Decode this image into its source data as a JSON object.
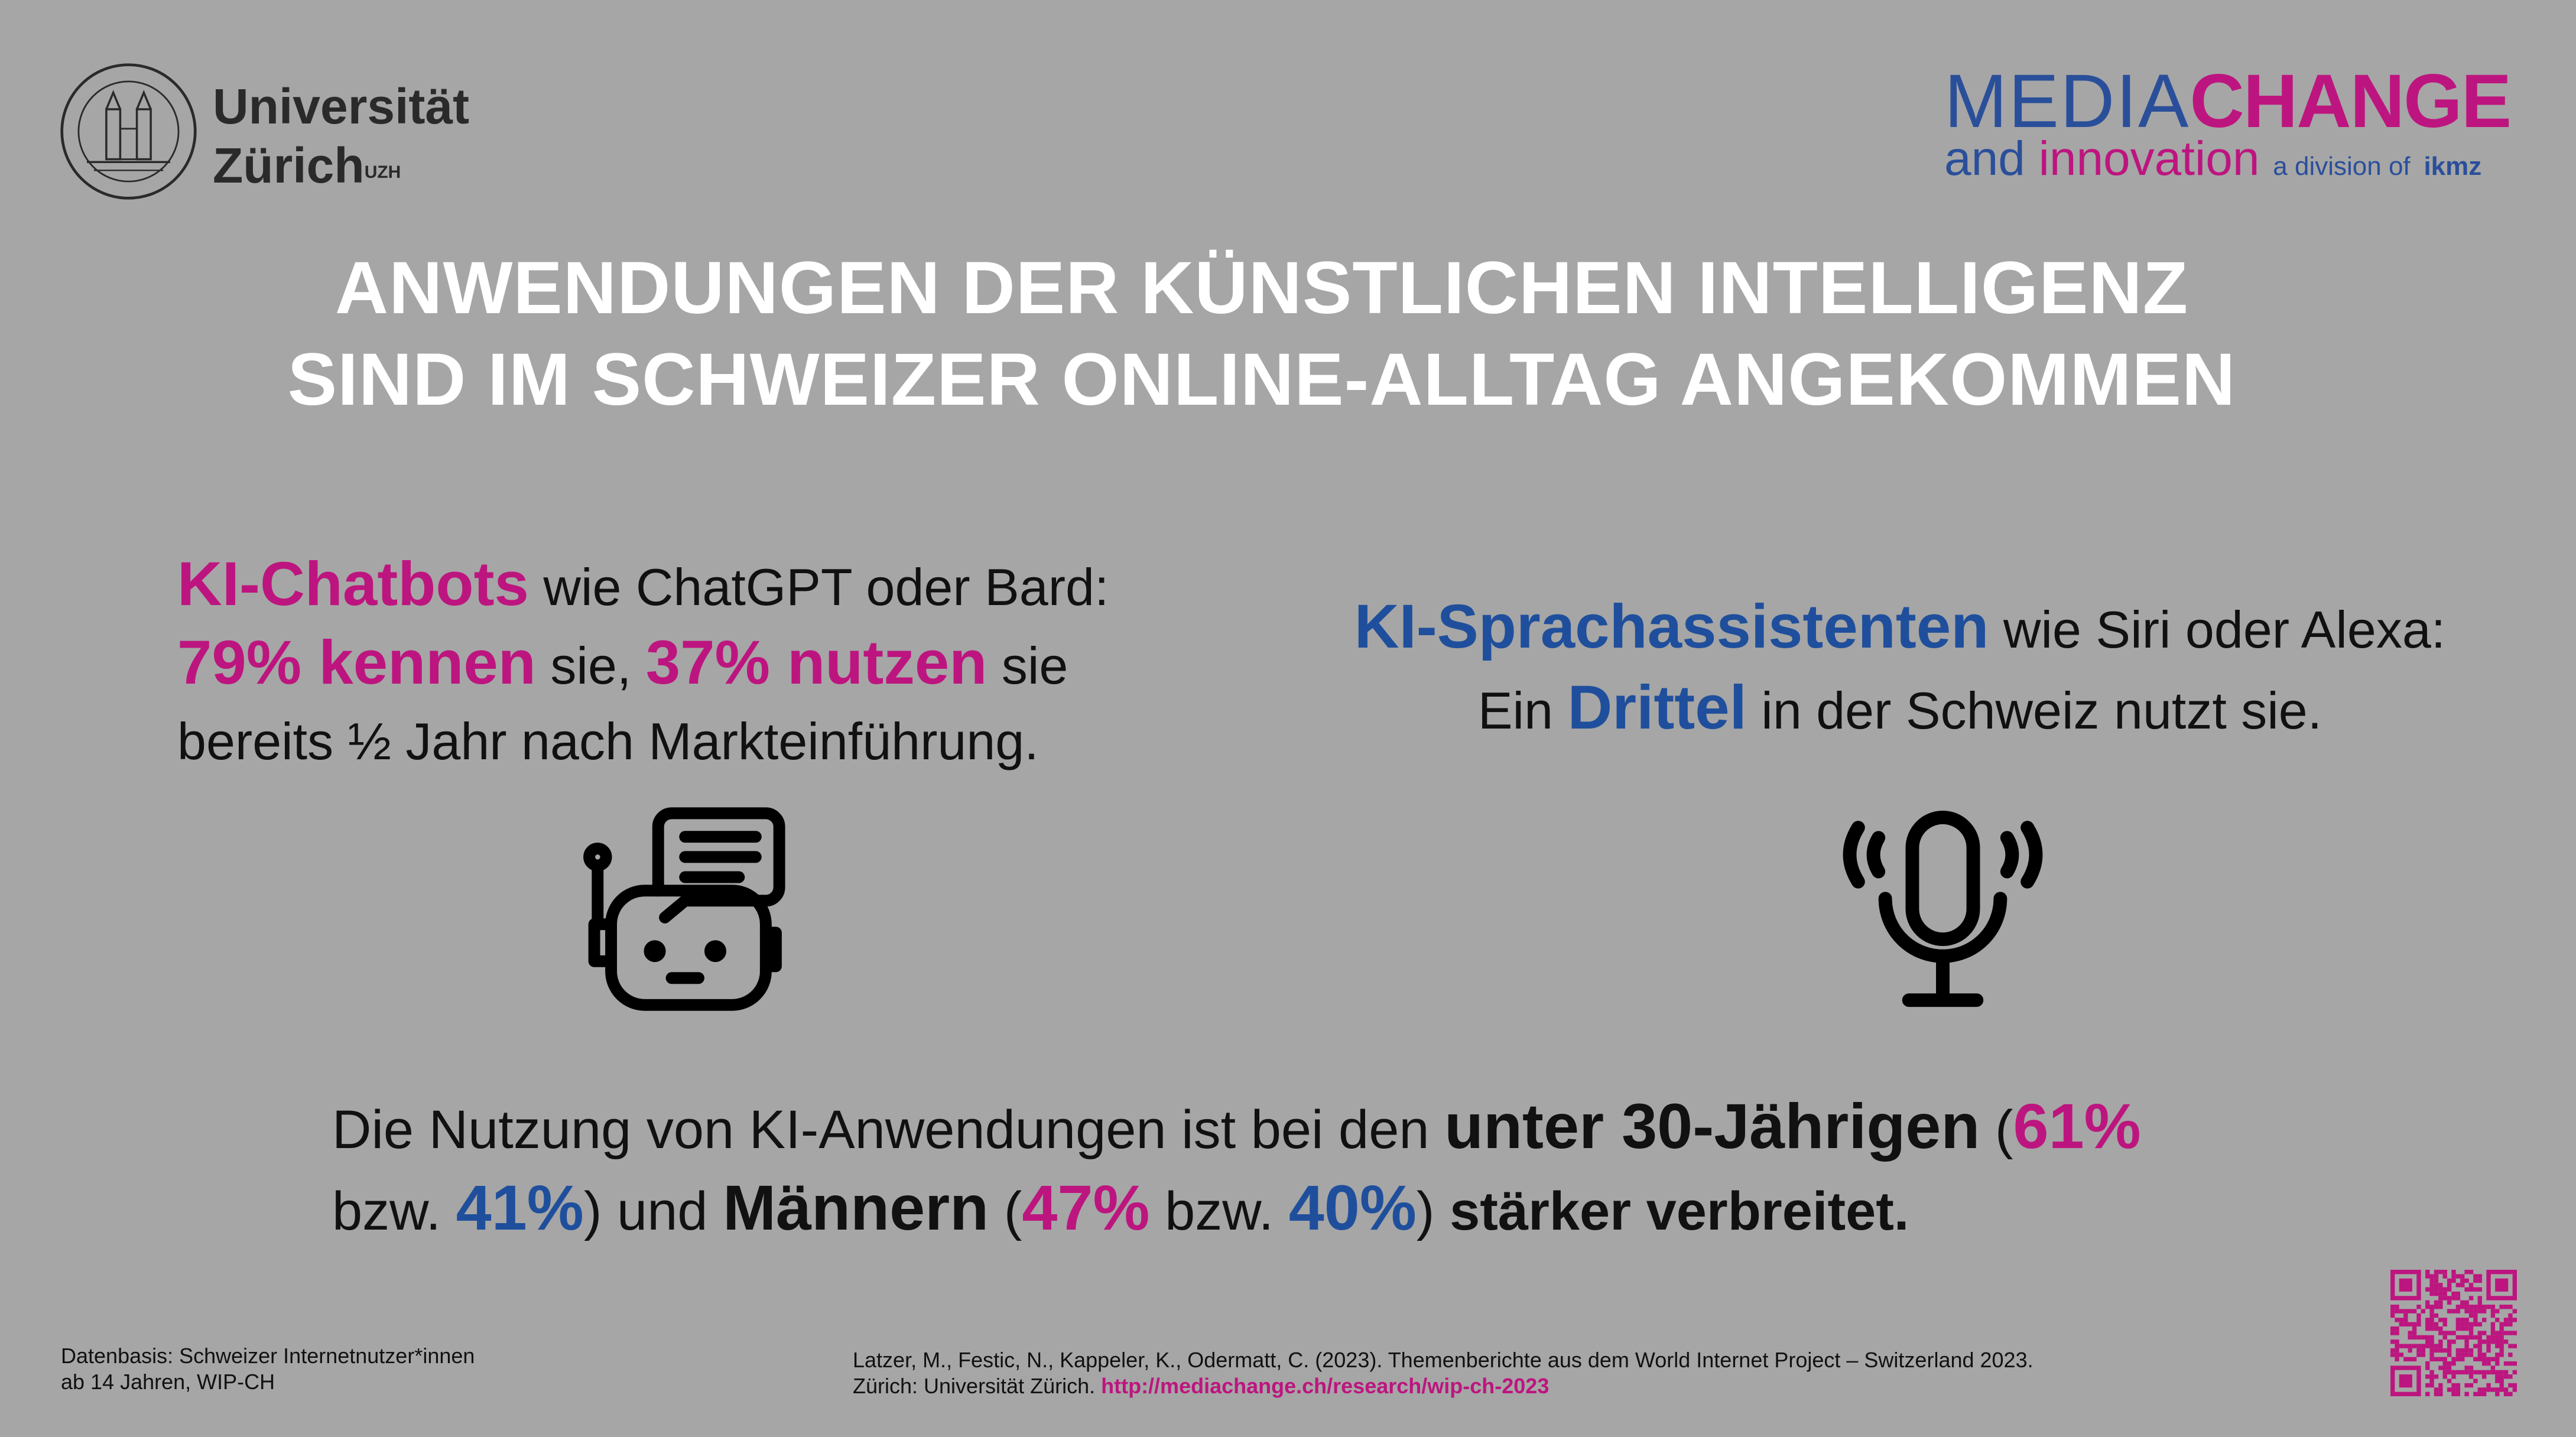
{
  "header": {
    "university_line1": "Universität",
    "university_line2": "Zürich",
    "university_abbr": "UZH",
    "brand_media": "MEDIA",
    "brand_change": "CHANGE",
    "brand_and": "and",
    "brand_innovation": "innovation",
    "brand_division": "a division of",
    "brand_ikmz": "ikmz"
  },
  "title": {
    "line1": "ANWENDUNGEN DER KÜNSTLICHEN INTELLIGENZ",
    "line2": "SIND IM SCHWEIZER ONLINE-ALLTAG ANGEKOMMEN"
  },
  "chatbots": {
    "heading": "KI-Chatbots",
    "text1": " wie ChatGPT oder Bard:",
    "know": "79% kennen",
    "text2": " sie, ",
    "use": "37% nutzen",
    "text3": " sie",
    "text4": "bereits ½ Jahr nach Markteinführung."
  },
  "assistants": {
    "heading": "KI-Sprachassistenten",
    "text1": " wie Siri oder Alexa:",
    "text2": "Ein ",
    "third": "Drittel",
    "text3": " in der Schweiz nutzt sie."
  },
  "summary": {
    "t1": "Die Nutzung von KI-Anwendungen ist bei den ",
    "under30": "unter 30-Jährigen",
    "t2": " (",
    "p61": "61%",
    "t3": "bzw. ",
    "p41": "41%",
    "t4": ") und ",
    "men": "Männern",
    "t5": " (",
    "p47": "47%",
    "t6": " bzw. ",
    "p40": "40%",
    "t7": ") ",
    "stronger": "stärker verbreitet."
  },
  "footer": {
    "data_line1": "Datenbasis: Schweizer Internetnutzer*innen",
    "data_line2": "ab 14 Jahren, WIP-CH",
    "citation_line1": "Latzer, M., Festic, N., Kappeler, K., Odermatt, C. (2023). Themenberichte aus dem World Internet Project – Switzerland 2023.",
    "citation_line2": "Zürich: Universität Zürich. ",
    "link": "http://mediachange.ch/research/wip-ch-2023"
  },
  "colors": {
    "background": "#a6a6a6",
    "magenta": "#bd157f",
    "blue": "#1f4f9c"
  }
}
